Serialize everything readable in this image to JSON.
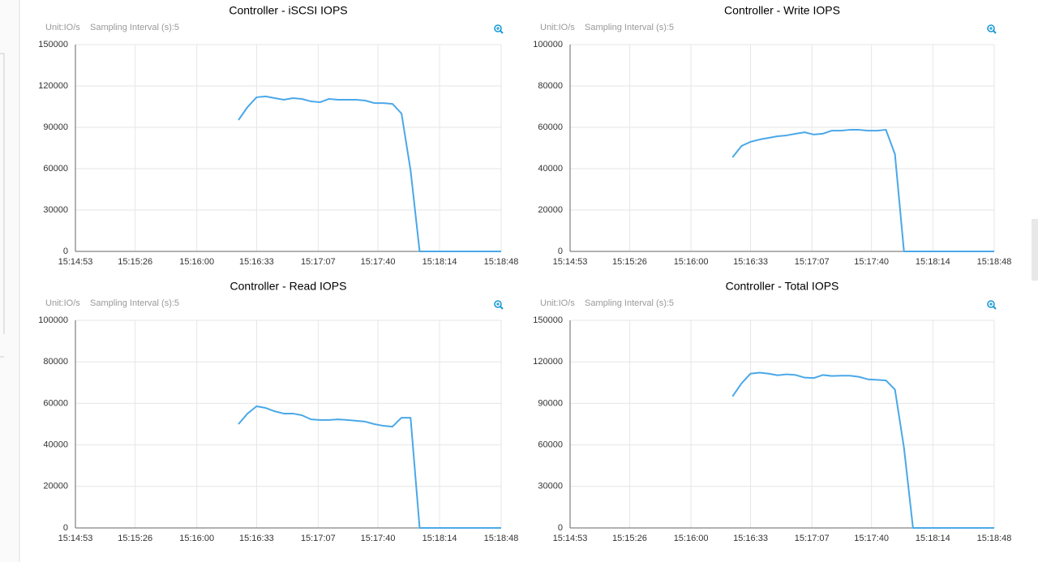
{
  "chart_data": [
    {
      "type": "line",
      "title": "Controller - iSCSI IOPS",
      "unit": "Unit:IO/s",
      "sampling": "Sampling Interval (s):5",
      "color": "#4aa8e8",
      "x": [
        "15:16:23",
        "15:16:28",
        "15:16:33",
        "15:16:38",
        "15:16:43",
        "15:16:48",
        "15:16:53",
        "15:16:58",
        "15:17:03",
        "15:17:08",
        "15:17:13",
        "15:17:18",
        "15:17:23",
        "15:17:28",
        "15:17:33",
        "15:17:38",
        "15:17:43",
        "15:17:48",
        "15:17:53",
        "15:17:58",
        "15:18:03",
        "15:18:08",
        "15:18:13",
        "15:18:18",
        "15:18:23",
        "15:18:28",
        "15:18:33",
        "15:18:38",
        "15:18:43",
        "15:18:48"
      ],
      "values": [
        95300,
        104700,
        111800,
        112400,
        111200,
        110000,
        111200,
        110600,
        108800,
        108200,
        110600,
        110000,
        110000,
        110000,
        109400,
        107600,
        107600,
        107000,
        100000,
        58800,
        0,
        0,
        0,
        0,
        0,
        0,
        0,
        0,
        0,
        0
      ],
      "xlim": [
        "15:14:53",
        "15:18:48"
      ],
      "xticks": [
        "15:14:53",
        "15:15:26",
        "15:16:00",
        "15:16:33",
        "15:17:07",
        "15:17:40",
        "15:18:14",
        "15:18:48"
      ],
      "ylim": [
        0,
        150000
      ],
      "yticks": [
        0,
        30000,
        60000,
        90000,
        120000,
        150000
      ],
      "grid": true
    },
    {
      "type": "line",
      "title": "Controller - Write IOPS",
      "unit": "Unit:IO/s",
      "sampling": "Sampling Interval (s):5",
      "color": "#4aa8e8",
      "x": [
        "15:16:23",
        "15:16:28",
        "15:16:33",
        "15:16:38",
        "15:16:43",
        "15:16:48",
        "15:16:53",
        "15:16:58",
        "15:17:03",
        "15:17:08",
        "15:17:13",
        "15:17:18",
        "15:17:23",
        "15:17:28",
        "15:17:33",
        "15:17:38",
        "15:17:43",
        "15:17:48",
        "15:17:53",
        "15:17:58",
        "15:18:03",
        "15:18:08",
        "15:18:13",
        "15:18:18",
        "15:18:23",
        "15:18:28",
        "15:18:33",
        "15:18:38",
        "15:18:43",
        "15:18:48"
      ],
      "values": [
        45500,
        51000,
        53000,
        54100,
        54900,
        55700,
        56100,
        56900,
        57600,
        56500,
        56900,
        58400,
        58400,
        58800,
        58800,
        58400,
        58400,
        58800,
        47000,
        0,
        0,
        0,
        0,
        0,
        0,
        0,
        0,
        0,
        0,
        0
      ],
      "xlim": [
        "15:14:53",
        "15:18:48"
      ],
      "xticks": [
        "15:14:53",
        "15:15:26",
        "15:16:00",
        "15:16:33",
        "15:17:07",
        "15:17:40",
        "15:18:14",
        "15:18:48"
      ],
      "ylim": [
        0,
        100000
      ],
      "yticks": [
        0,
        20000,
        40000,
        60000,
        80000,
        100000
      ],
      "grid": true
    },
    {
      "type": "line",
      "title": "Controller - Read IOPS",
      "unit": "Unit:IO/s",
      "sampling": "Sampling Interval (s):5",
      "color": "#4aa8e8",
      "x": [
        "15:16:23",
        "15:16:28",
        "15:16:33",
        "15:16:38",
        "15:16:43",
        "15:16:48",
        "15:16:53",
        "15:16:58",
        "15:17:03",
        "15:17:08",
        "15:17:13",
        "15:17:18",
        "15:17:23",
        "15:17:28",
        "15:17:33",
        "15:17:38",
        "15:17:43",
        "15:17:48",
        "15:17:53",
        "15:17:58",
        "15:18:03",
        "15:18:08",
        "15:18:13",
        "15:18:18",
        "15:18:23",
        "15:18:28",
        "15:18:33",
        "15:18:38",
        "15:18:43",
        "15:18:48"
      ],
      "values": [
        50000,
        55100,
        58600,
        57800,
        56200,
        55100,
        55100,
        54300,
        52300,
        52000,
        52000,
        52300,
        52000,
        51600,
        51200,
        50000,
        49200,
        48800,
        53100,
        53100,
        0,
        0,
        0,
        0,
        0,
        0,
        0,
        0,
        0,
        0
      ],
      "xlim": [
        "15:14:53",
        "15:18:48"
      ],
      "xticks": [
        "15:14:53",
        "15:15:26",
        "15:16:00",
        "15:16:33",
        "15:17:07",
        "15:17:40",
        "15:18:14",
        "15:18:48"
      ],
      "ylim": [
        0,
        100000
      ],
      "yticks": [
        0,
        20000,
        40000,
        60000,
        80000,
        100000
      ],
      "grid": true
    },
    {
      "type": "line",
      "title": "Controller - Total IOPS",
      "unit": "Unit:IO/s",
      "sampling": "Sampling Interval (s):5",
      "color": "#4aa8e8",
      "x": [
        "15:16:23",
        "15:16:28",
        "15:16:33",
        "15:16:38",
        "15:16:43",
        "15:16:48",
        "15:16:53",
        "15:16:58",
        "15:17:03",
        "15:17:08",
        "15:17:13",
        "15:17:18",
        "15:17:23",
        "15:17:28",
        "15:17:33",
        "15:17:38",
        "15:17:43",
        "15:17:48",
        "15:17:53",
        "15:17:58",
        "15:18:03",
        "15:18:08",
        "15:18:13",
        "15:18:18",
        "15:18:23",
        "15:18:28",
        "15:18:33",
        "15:18:38",
        "15:18:43",
        "15:18:48"
      ],
      "values": [
        95000,
        104500,
        111500,
        112200,
        111500,
        110300,
        111000,
        110500,
        108600,
        108300,
        110500,
        109800,
        110000,
        110000,
        109200,
        107400,
        107000,
        106600,
        100000,
        58000,
        0,
        0,
        0,
        0,
        0,
        0,
        0,
        0,
        0,
        0
      ],
      "xlim": [
        "15:14:53",
        "15:18:48"
      ],
      "xticks": [
        "15:14:53",
        "15:15:26",
        "15:16:00",
        "15:16:33",
        "15:17:07",
        "15:17:40",
        "15:18:14",
        "15:18:48"
      ],
      "ylim": [
        0,
        150000
      ],
      "yticks": [
        0,
        30000,
        60000,
        90000,
        120000,
        150000
      ],
      "grid": true
    }
  ]
}
